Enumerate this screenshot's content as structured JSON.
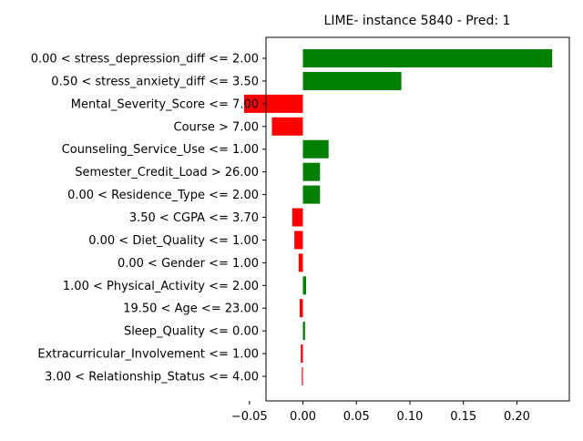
{
  "chart_data": {
    "type": "bar",
    "orientation": "horizontal",
    "title": "LIME- instance 5840 - Pred: 1",
    "xlabel": "",
    "ylabel": "",
    "xlim": [
      -0.0345,
      0.249
    ],
    "xticks": [
      -0.05,
      0.0,
      0.05,
      0.1,
      0.15,
      0.2
    ],
    "xtick_labels": [
      "−0.05",
      "0.00",
      "0.05",
      "0.10",
      "0.15",
      "0.20"
    ],
    "grid": false,
    "legend": false,
    "positive_color": "#008000",
    "negative_color": "#ff0000",
    "categories": [
      "0.00 < stress_depression_diff <= 2.00",
      "0.50 < stress_anxiety_diff <= 3.50",
      "Mental_Severity_Score <= 7.00",
      "Course > 7.00",
      "Counseling_Service_Use <= 1.00",
      "Semester_Credit_Load > 26.00",
      "0.00 < Residence_Type <= 2.00",
      "3.50 < CGPA <= 3.70",
      "0.00 < Diet_Quality <= 1.00",
      "0.00 < Gender <= 1.00",
      "1.00 < Physical_Activity <= 2.00",
      "19.50 < Age <= 23.00",
      "Sleep_Quality <= 0.00",
      "Extracurricular_Involvement <= 1.00",
      "3.00 < Relationship_Status <= 4.00"
    ],
    "values": [
      0.233,
      0.092,
      -0.055,
      -0.029,
      0.024,
      0.016,
      0.016,
      -0.01,
      -0.008,
      -0.004,
      0.003,
      -0.003,
      0.002,
      -0.002,
      -0.001
    ]
  }
}
